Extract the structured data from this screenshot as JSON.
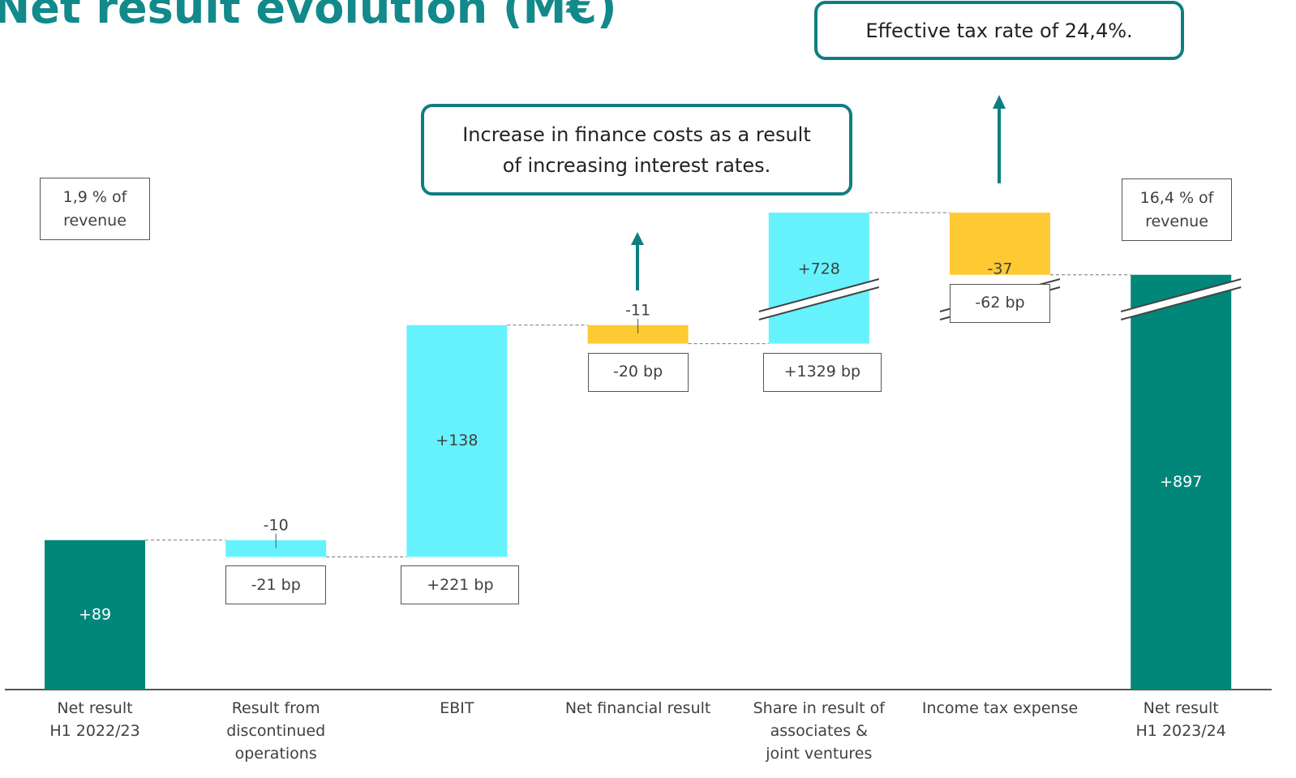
{
  "chart_data": {
    "type": "waterfall",
    "title": "Net result evolution (M€)",
    "categories": [
      "Net result\nH1 2022/23",
      "Result from\ndiscontinued\noperations",
      "EBIT",
      "Net financial result",
      "Share in result of\nassociates &\njoint ventures",
      "Income tax expense",
      "Net result\nH1 2023/24"
    ],
    "values": [
      89,
      -10,
      138,
      -11,
      728,
      -37,
      897
    ],
    "value_labels": [
      "+89",
      "-10",
      "+138",
      "-11",
      "+728",
      "-37",
      "+897"
    ],
    "colors": [
      "#00877a",
      "#66f2fc",
      "#66f2fc",
      "#fdca33",
      "#66f2fc",
      "#fdca33",
      "#00877a"
    ],
    "bp_labels": [
      null,
      "-21 bp",
      "+221 bp",
      "-20 bp",
      "+1329 bp",
      "-62 bp",
      null
    ],
    "revenue_notes": [
      "1,9 % of\nrevenue",
      "16,4 % of\nrevenue"
    ],
    "annotations": [
      "Increase in finance costs as a result\nof increasing interest rates.",
      "Effective tax rate of 24,4%."
    ]
  }
}
